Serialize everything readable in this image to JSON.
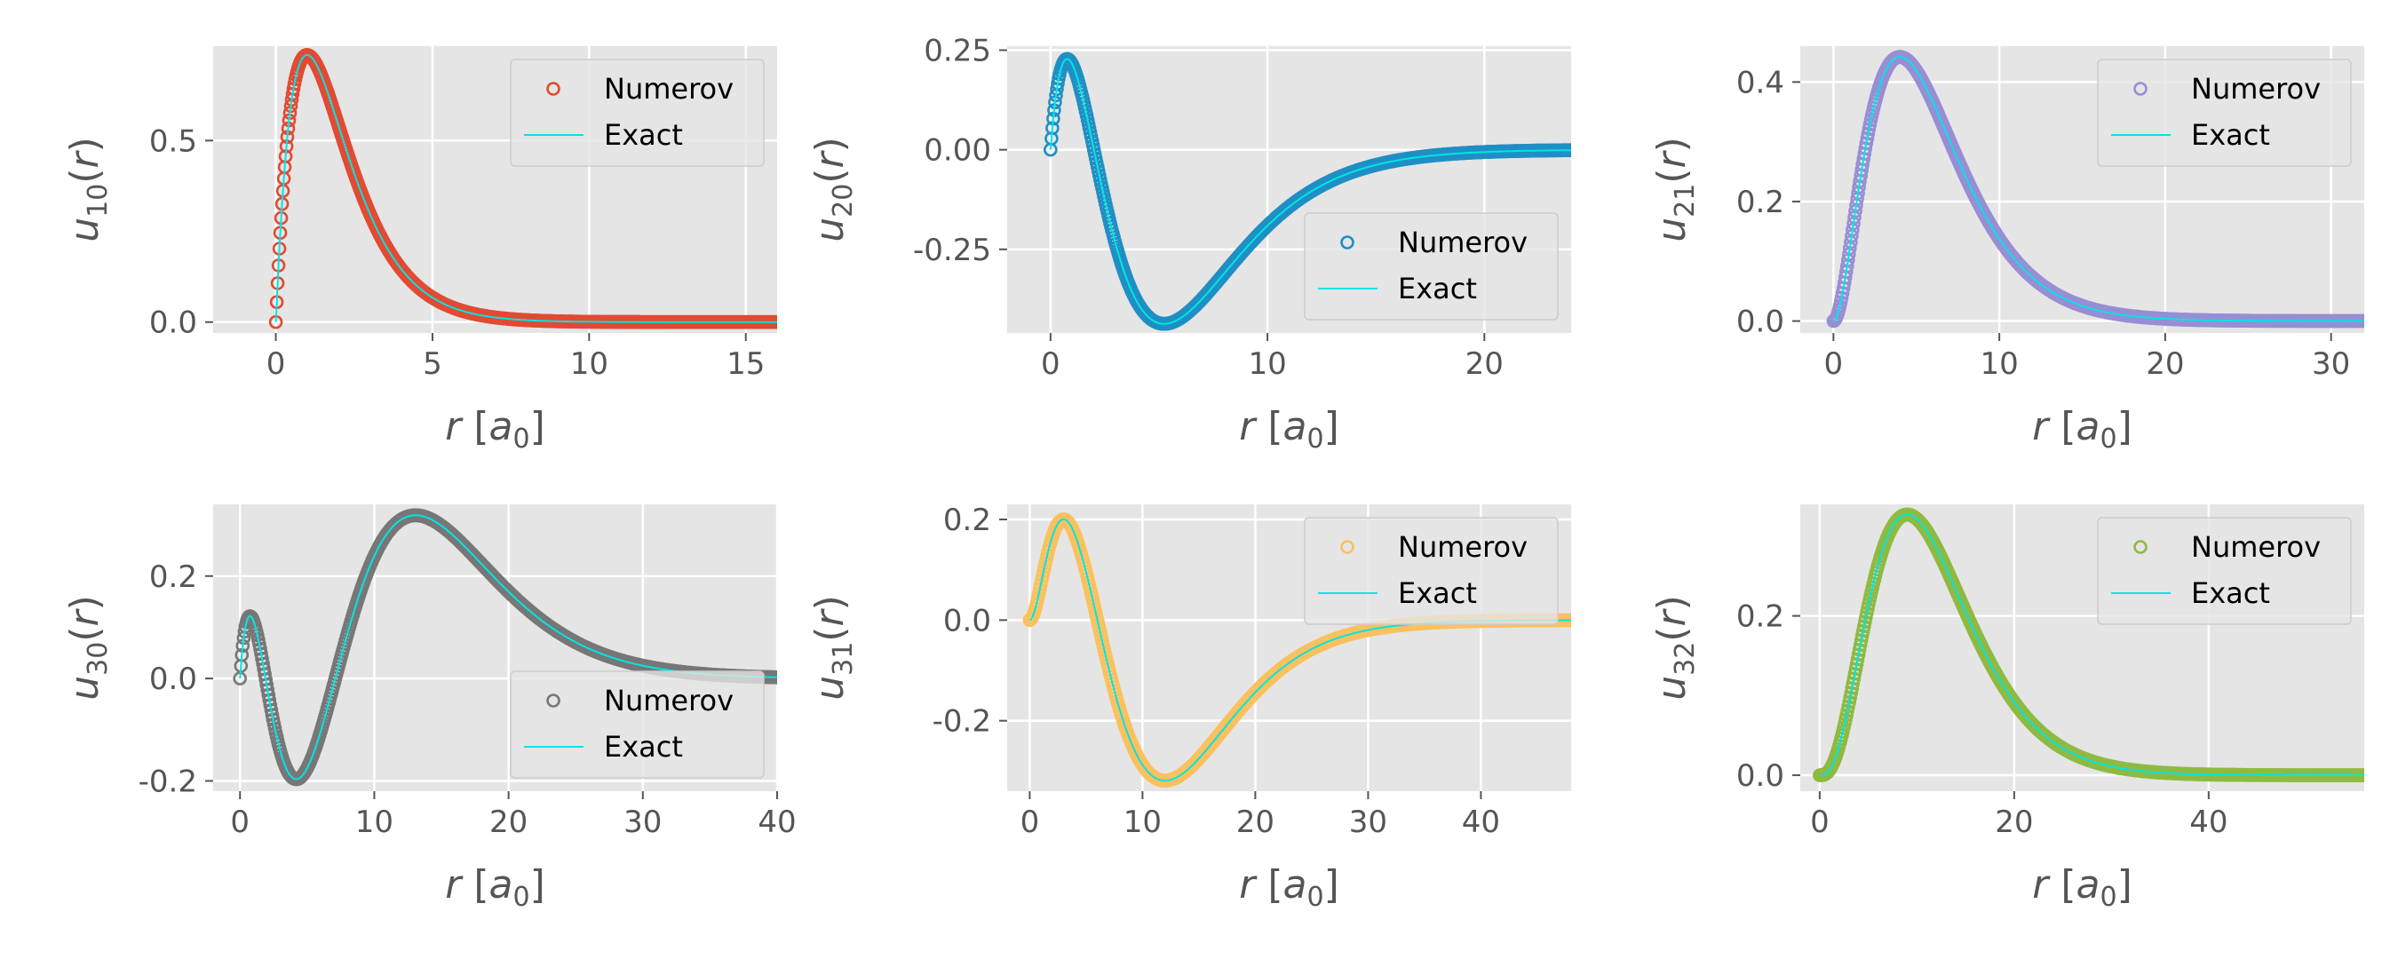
{
  "figure": {
    "background": "#ffffff",
    "axes_facecolor": "#e5e5e5",
    "grid_color": "#ffffff",
    "exact_color": "#00e5e5",
    "tick_color": "#555555"
  },
  "chart_data": [
    {
      "type": "line",
      "id": "u10",
      "ylabel_base": "u",
      "ylabel_sub": "10",
      "ylabel_tail": "(r)",
      "xlabel_var": "r",
      "xlabel_unit_base": "a",
      "xlabel_unit_sub": "0",
      "xlim": [
        -2,
        16
      ],
      "ylim": [
        -0.03,
        0.76
      ],
      "xticks": [
        0,
        5,
        10,
        15
      ],
      "xticklabels": [
        "0",
        "5",
        "10",
        "15"
      ],
      "yticks": [
        0,
        0.5
      ],
      "yticklabels": [
        "0.0",
        "0.5"
      ],
      "grid": true,
      "legend_loc": "upper-right",
      "marker_color": "#e24a33",
      "n": 1,
      "l": 0,
      "series": [
        {
          "name": "Numerov",
          "style": "open-circles",
          "color": "#e24a33"
        },
        {
          "name": "Exact",
          "style": "line",
          "color": "#00e5e5"
        }
      ]
    },
    {
      "type": "line",
      "id": "u20",
      "ylabel_base": "u",
      "ylabel_sub": "20",
      "ylabel_tail": "(r)",
      "xlabel_var": "r",
      "xlabel_unit_base": "a",
      "xlabel_unit_sub": "0",
      "xlim": [
        -2,
        24
      ],
      "ylim": [
        -0.46,
        0.26
      ],
      "xticks": [
        0,
        10,
        20
      ],
      "xticklabels": [
        "0",
        "10",
        "20"
      ],
      "yticks": [
        -0.25,
        0,
        0.25
      ],
      "yticklabels": [
        "-0.25",
        "0.00",
        "0.25"
      ],
      "grid": true,
      "legend_loc": "lower-right",
      "marker_color": "#1f8fc4",
      "n": 2,
      "l": 0,
      "series": [
        {
          "name": "Numerov",
          "style": "open-circles",
          "color": "#1f8fc4"
        },
        {
          "name": "Exact",
          "style": "line",
          "color": "#00e5e5"
        }
      ]
    },
    {
      "type": "line",
      "id": "u21",
      "ylabel_base": "u",
      "ylabel_sub": "21",
      "ylabel_tail": "(r)",
      "xlabel_var": "r",
      "xlabel_unit_base": "a",
      "xlabel_unit_sub": "0",
      "xlim": [
        -2,
        32
      ],
      "ylim": [
        -0.02,
        0.46
      ],
      "xticks": [
        0,
        10,
        20,
        30
      ],
      "xticklabels": [
        "0",
        "10",
        "20",
        "30"
      ],
      "yticks": [
        0,
        0.2,
        0.4
      ],
      "yticklabels": [
        "0.0",
        "0.2",
        "0.4"
      ],
      "grid": true,
      "legend_loc": "upper-right",
      "marker_color": "#988ed5",
      "n": 2,
      "l": 1,
      "series": [
        {
          "name": "Numerov",
          "style": "open-circles",
          "color": "#988ed5"
        },
        {
          "name": "Exact",
          "style": "line",
          "color": "#00e5e5"
        }
      ]
    },
    {
      "type": "line",
      "id": "u30",
      "ylabel_base": "u",
      "ylabel_sub": "30",
      "ylabel_tail": "(r)",
      "xlabel_var": "r",
      "xlabel_unit_base": "a",
      "xlabel_unit_sub": "0",
      "xlim": [
        -2,
        40
      ],
      "ylim": [
        -0.22,
        0.34
      ],
      "xticks": [
        0,
        10,
        20,
        30,
        40
      ],
      "xticklabels": [
        "0",
        "10",
        "20",
        "30",
        "40"
      ],
      "yticks": [
        -0.2,
        0,
        0.2
      ],
      "yticklabels": [
        "-0.2",
        "0.0",
        "0.2"
      ],
      "grid": true,
      "legend_loc": "lower-right",
      "marker_color": "#777777",
      "n": 3,
      "l": 0,
      "series": [
        {
          "name": "Numerov",
          "style": "open-circles",
          "color": "#777777"
        },
        {
          "name": "Exact",
          "style": "line",
          "color": "#00e5e5"
        }
      ]
    },
    {
      "type": "line",
      "id": "u31",
      "ylabel_base": "u",
      "ylabel_sub": "31",
      "ylabel_tail": "(r)",
      "xlabel_var": "r",
      "xlabel_unit_base": "a",
      "xlabel_unit_sub": "0",
      "xlim": [
        -2,
        48
      ],
      "ylim": [
        -0.34,
        0.23
      ],
      "xticks": [
        0,
        10,
        20,
        30,
        40
      ],
      "xticklabels": [
        "0",
        "10",
        "20",
        "30",
        "40"
      ],
      "yticks": [
        -0.2,
        0,
        0.2
      ],
      "yticklabels": [
        "-0.2",
        "0.0",
        "0.2"
      ],
      "grid": true,
      "legend_loc": "upper-right",
      "marker_color": "#fbc15e",
      "n": 3,
      "l": 1,
      "series": [
        {
          "name": "Numerov",
          "style": "open-circles",
          "color": "#fbc15e"
        },
        {
          "name": "Exact",
          "style": "line",
          "color": "#00e5e5"
        }
      ]
    },
    {
      "type": "line",
      "id": "u32",
      "ylabel_base": "u",
      "ylabel_sub": "32",
      "ylabel_tail": "(r)",
      "xlabel_var": "r",
      "xlabel_unit_base": "a",
      "xlabel_unit_sub": "0",
      "xlim": [
        -2,
        56
      ],
      "ylim": [
        -0.02,
        0.34
      ],
      "xticks": [
        0,
        20,
        40
      ],
      "xticklabels": [
        "0",
        "20",
        "40"
      ],
      "yticks": [
        0,
        0.2
      ],
      "yticklabels": [
        "0.0",
        "0.2"
      ],
      "grid": true,
      "legend_loc": "upper-right",
      "marker_color": "#8eba42",
      "n": 3,
      "l": 2,
      "series": [
        {
          "name": "Numerov",
          "style": "open-circles",
          "color": "#8eba42"
        },
        {
          "name": "Exact",
          "style": "line",
          "color": "#00e5e5"
        }
      ]
    }
  ]
}
